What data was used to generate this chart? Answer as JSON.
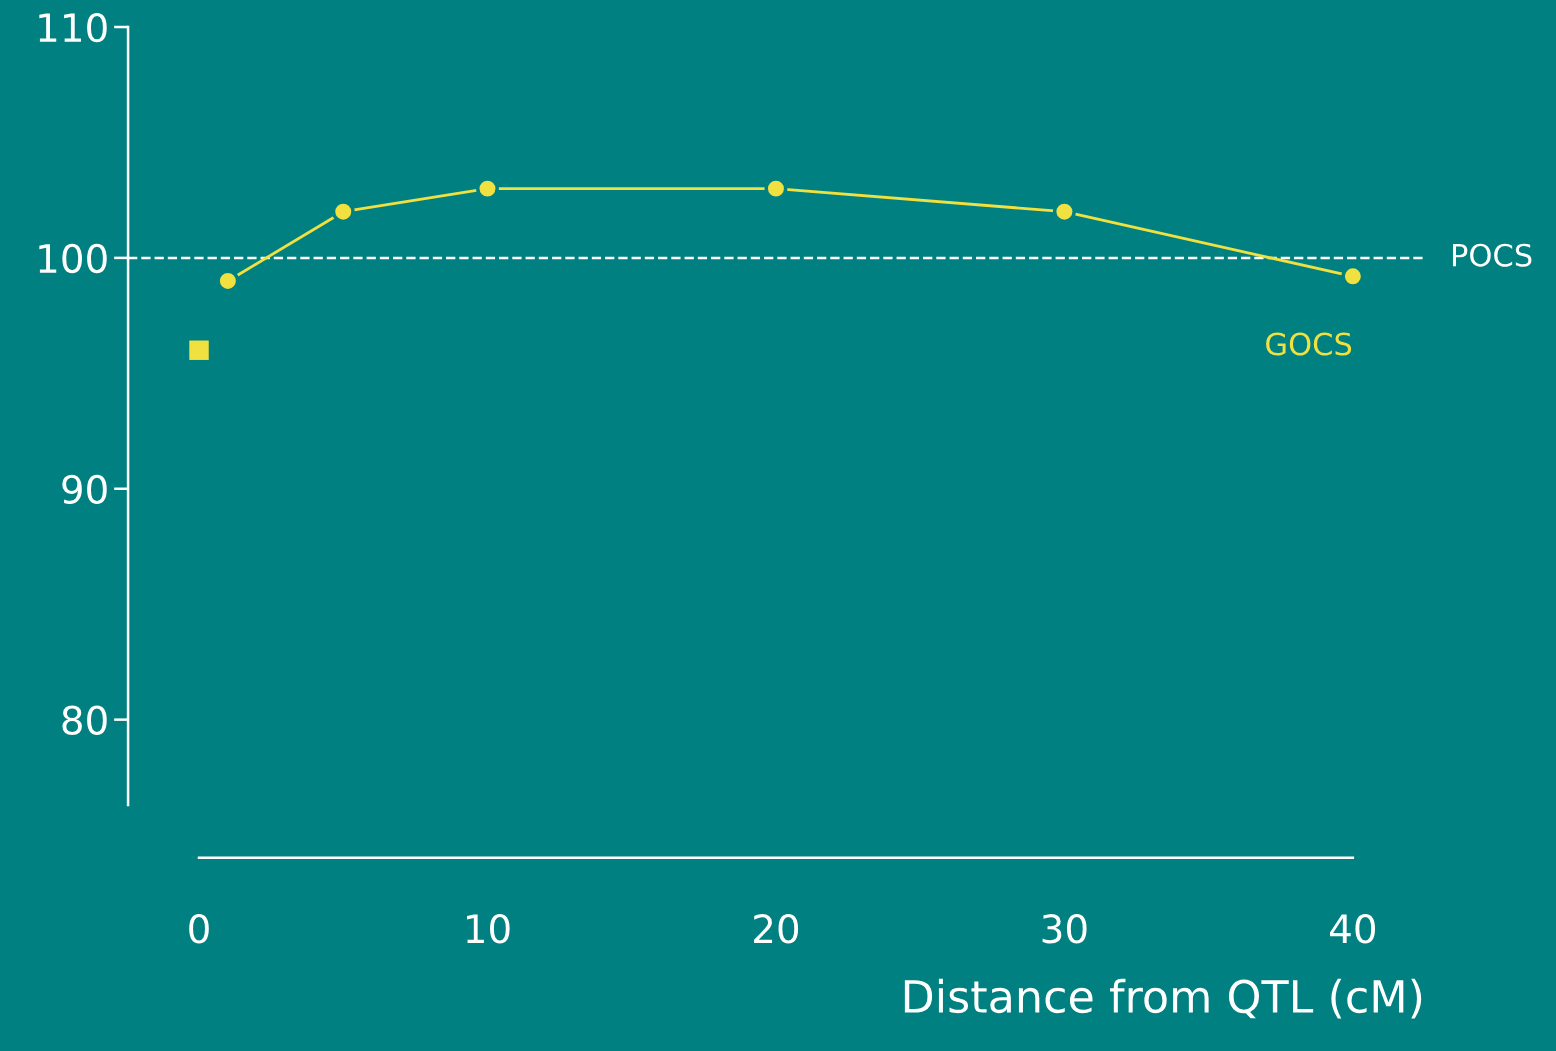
{
  "chart_data": {
    "type": "line",
    "xlabel": "Distance from QTL (cM)",
    "xlim": [
      -2.46,
      42.5
    ],
    "ylim": [
      76.3,
      110
    ],
    "xticks": [
      0,
      10,
      20,
      30,
      40
    ],
    "yticks": [
      80,
      90,
      100,
      110
    ],
    "grid": false,
    "legend": false,
    "marker": "circle",
    "line_style": "solid",
    "series": [
      {
        "name": "GOCS",
        "color": "#f0e040",
        "x": [
          1,
          5,
          10,
          20,
          30,
          40
        ],
        "values": [
          99,
          102,
          103,
          103,
          102,
          99.2
        ]
      },
      {
        "type": "scatter",
        "marker": "square",
        "color": "#f0e040",
        "x": [
          0
        ],
        "values": [
          96
        ]
      }
    ],
    "ref_lines": [
      {
        "axis": "y",
        "value": 100,
        "label": "POCS",
        "color": "#ffffff",
        "line_style": "dashed"
      }
    ]
  }
}
